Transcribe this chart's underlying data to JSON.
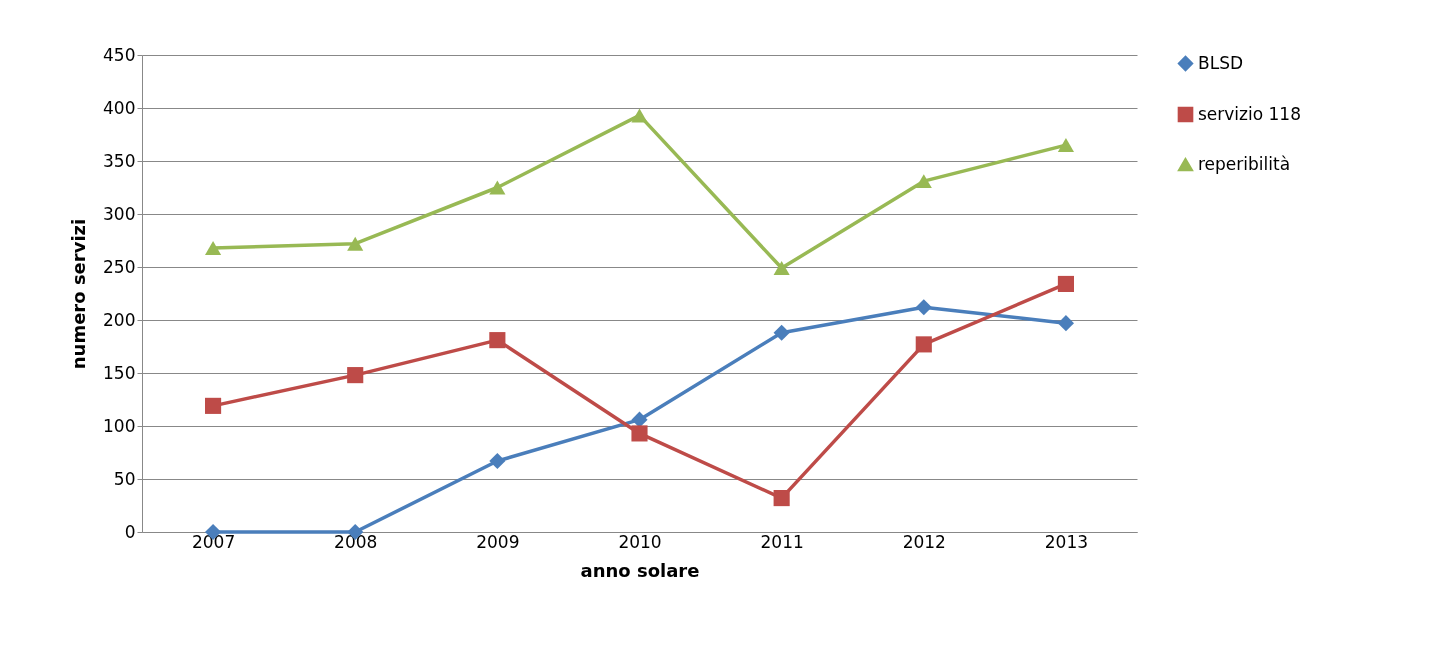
{
  "chart_data": {
    "type": "line",
    "xlabel": "anno solare",
    "ylabel": "numero servizi",
    "categories": [
      "2007",
      "2008",
      "2009",
      "2010",
      "2011",
      "2012",
      "2013"
    ],
    "series": [
      {
        "name": "BLSD",
        "color": "#4a7ebb",
        "marker": "diamond",
        "values": [
          0,
          0,
          67,
          106,
          188,
          212,
          197
        ]
      },
      {
        "name": "servizio 118",
        "color": "#be4b48",
        "marker": "square",
        "values": [
          119,
          148,
          181,
          93,
          32,
          177,
          234
        ]
      },
      {
        "name": "reperibilità",
        "color": "#98b954",
        "marker": "triangle",
        "values": [
          268,
          272,
          325,
          393,
          249,
          331,
          365
        ]
      }
    ],
    "ylim": [
      0,
      450
    ],
    "yticks": [
      0,
      50,
      100,
      150,
      200,
      250,
      300,
      350,
      400,
      450
    ],
    "grid": "y",
    "legend": "right"
  }
}
